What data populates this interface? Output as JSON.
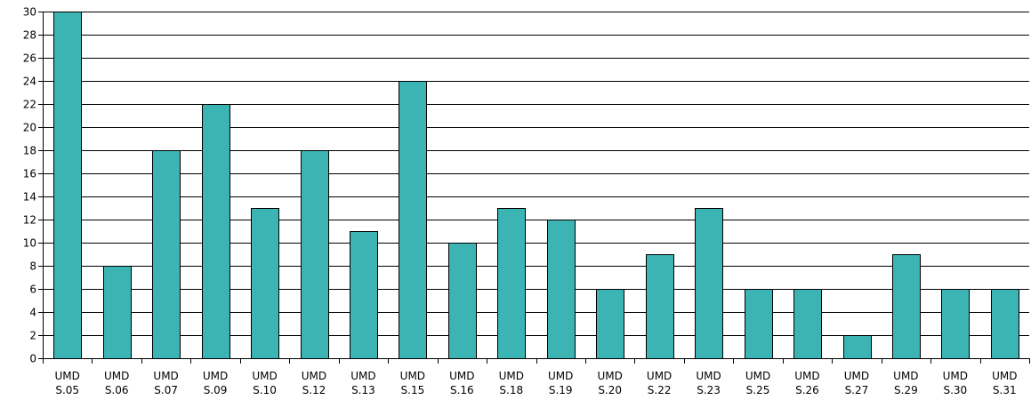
{
  "chart_data": {
    "type": "bar",
    "title": "",
    "xlabel": "",
    "ylabel": "",
    "ylim": [
      0,
      30
    ],
    "ytick_step": 2,
    "grid": true,
    "bar_color": "#3cb4b4",
    "categories": [
      {
        "line1": "UMD",
        "line2": "S.05"
      },
      {
        "line1": "UMD",
        "line2": "S.06"
      },
      {
        "line1": "UMD",
        "line2": "S.07"
      },
      {
        "line1": "UMD",
        "line2": "S.09"
      },
      {
        "line1": "UMD",
        "line2": "S.10"
      },
      {
        "line1": "UMD",
        "line2": "S.12"
      },
      {
        "line1": "UMD",
        "line2": "S.13"
      },
      {
        "line1": "UMD",
        "line2": "S.15"
      },
      {
        "line1": "UMD",
        "line2": "S.16"
      },
      {
        "line1": "UMD",
        "line2": "S.18"
      },
      {
        "line1": "UMD",
        "line2": "S.19"
      },
      {
        "line1": "UMD",
        "line2": "S.20"
      },
      {
        "line1": "UMD",
        "line2": "S.22"
      },
      {
        "line1": "UMD",
        "line2": "S.23"
      },
      {
        "line1": "UMD",
        "line2": "S.25"
      },
      {
        "line1": "UMD",
        "line2": "S.26"
      },
      {
        "line1": "UMD",
        "line2": "S.27"
      },
      {
        "line1": "UMD",
        "line2": "S.29"
      },
      {
        "line1": "UMD",
        "line2": "S.30"
      },
      {
        "line1": "UMD",
        "line2": "S.31"
      }
    ],
    "values": [
      30,
      8,
      18,
      22,
      13,
      18,
      11,
      24,
      10,
      13,
      12,
      6,
      9,
      13,
      6,
      6,
      2,
      9,
      6,
      6
    ]
  }
}
